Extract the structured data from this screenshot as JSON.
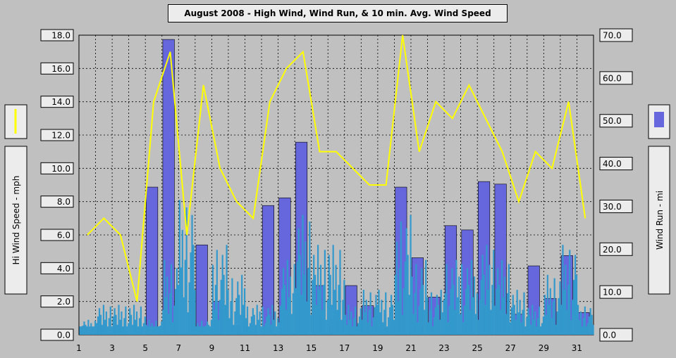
{
  "title": "August 2008 - High Wind, Wind Run, & 10 min. Avg. Wind Speed",
  "legend": {
    "left_series_icon": "yellow-line-icon",
    "right_series_icon": "blue-bar-icon",
    "left_color": "#ffff00",
    "right_color": "#6666dd",
    "avg_color": "#3399cc"
  },
  "chart_data": {
    "type": "line",
    "title": "August 2008 - High Wind, Wind Run, & 10 min. Avg. Wind Speed",
    "x": {
      "label": "",
      "min": 1,
      "max": 32,
      "tick_labels": [
        "1",
        "3",
        "5",
        "7",
        "9",
        "11",
        "13",
        "15",
        "17",
        "19",
        "21",
        "23",
        "25",
        "27",
        "29",
        "31"
      ]
    },
    "y_left": {
      "label": "Hi Wind Speed - mph",
      "min": 0,
      "max": 18,
      "tick_labels": [
        "0.0",
        "2.0",
        "4.0",
        "6.0",
        "8.0",
        "10.0",
        "12.0",
        "14.0",
        "16.0",
        "18.0"
      ]
    },
    "y_right": {
      "label": "Wind Run - mi",
      "min": 0,
      "max": 70,
      "tick_labels": [
        "0.0",
        "10.0",
        "20.0",
        "30.0",
        "40.0",
        "50.0",
        "60.0",
        "70.0"
      ]
    },
    "grid": true,
    "high_wind": {
      "days": [
        1,
        2,
        3,
        4,
        5,
        6,
        7,
        8,
        9,
        10,
        11,
        12,
        13,
        14,
        15,
        16,
        17,
        18,
        19,
        20,
        21,
        22,
        23,
        24,
        25,
        26,
        27,
        28,
        29,
        30,
        31
      ],
      "values": [
        6.0,
        7.0,
        6.0,
        2.0,
        14.0,
        17.0,
        6.0,
        15.0,
        10.0,
        8.0,
        7.0,
        14.0,
        16.0,
        17.0,
        11.0,
        11.0,
        10.0,
        9.0,
        9.0,
        18.0,
        11.0,
        14.0,
        13.0,
        15.0,
        13.0,
        11.0,
        8.0,
        11.0,
        10.0,
        14.0,
        7.0
      ]
    },
    "wind_run": {
      "days": [
        1,
        2,
        3,
        4,
        5,
        6,
        7,
        8,
        9,
        10,
        11,
        12,
        13,
        14,
        15,
        16,
        17,
        18,
        19,
        20,
        21,
        22,
        23,
        24,
        25,
        26,
        27,
        28,
        29,
        30,
        31
      ],
      "values": [
        0.5,
        1.2,
        1.5,
        0,
        34.5,
        69,
        0,
        21,
        7.8,
        2.0,
        1.8,
        30.2,
        32,
        45,
        11.5,
        3.5,
        11.5,
        6.8,
        1.5,
        34.5,
        18,
        8.8,
        25.5,
        24.5,
        35.8,
        35.2,
        4.8,
        16.1,
        8.5,
        18.5,
        5.2
      ]
    },
    "avg_speed": {
      "peaks_mph": [
        1,
        2,
        2,
        2,
        1,
        5,
        9,
        1,
        6,
        4,
        2,
        2,
        5,
        8,
        6,
        6,
        2,
        3,
        3,
        8,
        5,
        3,
        5,
        5,
        6,
        5,
        3,
        2,
        4,
        6,
        2
      ]
    }
  }
}
